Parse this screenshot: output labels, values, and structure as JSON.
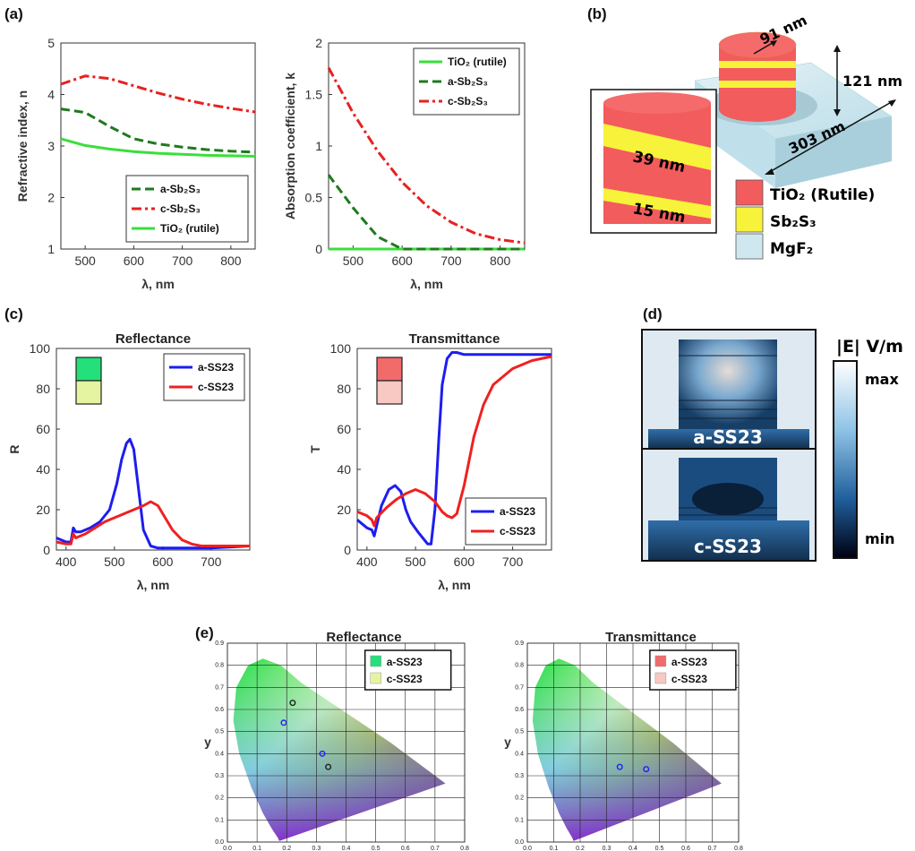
{
  "panels": {
    "a": "(a)",
    "b": "(b)",
    "c": "(c)",
    "d": "(d)",
    "e": "(e)"
  },
  "panel_b": {
    "dims": {
      "width": "91 nm",
      "height": "121 nm",
      "period": "303 nm",
      "layer1": "39 nm",
      "layer2": "15 nm"
    },
    "legend": [
      {
        "label": "TiO₂ (Rutile)",
        "color": "#f25c5c"
      },
      {
        "label": "Sb₂S₃",
        "color": "#f7f23a"
      },
      {
        "label": "MgF₂",
        "color": "#cfe8f0"
      }
    ]
  },
  "panel_d": {
    "labels": [
      "a-SS23",
      "c-SS23"
    ],
    "colorbar_title": "|E| V/m",
    "colorbar_max": "max",
    "colorbar_min": "min"
  },
  "chart_data": [
    {
      "id": "a-n",
      "type": "line",
      "xlabel": "λ, nm",
      "ylabel": "Refractive index, n",
      "xlim": [
        450,
        850
      ],
      "ylim": [
        1,
        5
      ],
      "xticks": [
        500,
        600,
        700,
        800
      ],
      "yticks": [
        1,
        2,
        3,
        4,
        5
      ],
      "legend_position": "bottom-right",
      "x": [
        450,
        500,
        550,
        600,
        650,
        700,
        750,
        800,
        850
      ],
      "series": [
        {
          "name": "a-Sb₂S₃",
          "color": "#1e7a1e",
          "dash": "10,5",
          "values": [
            3.72,
            3.65,
            3.38,
            3.14,
            3.04,
            2.98,
            2.93,
            2.9,
            2.88
          ]
        },
        {
          "name": "c-Sb₂S₃",
          "color": "#e82020",
          "dash": "11,4,3,4",
          "values": [
            4.2,
            4.36,
            4.31,
            4.17,
            4.03,
            3.91,
            3.81,
            3.73,
            3.66
          ]
        },
        {
          "name": "TiO₂ (rutile)",
          "color": "#3adf3a",
          "dash": "",
          "values": [
            3.14,
            3.01,
            2.94,
            2.89,
            2.86,
            2.84,
            2.82,
            2.81,
            2.8
          ]
        }
      ]
    },
    {
      "id": "a-k",
      "type": "line",
      "xlabel": "λ, nm",
      "ylabel": "Absorption coefficient, k",
      "xlim": [
        450,
        850
      ],
      "ylim": [
        0,
        2
      ],
      "xticks": [
        500,
        600,
        700,
        800
      ],
      "yticks": [
        0,
        0.5,
        1,
        1.5,
        2
      ],
      "legend_position": "top-right",
      "x": [
        450,
        500,
        550,
        600,
        650,
        700,
        750,
        800,
        850
      ],
      "series": [
        {
          "name": "TiO₂ (rutile)",
          "color": "#3adf3a",
          "dash": "",
          "values": [
            0,
            0,
            0,
            0,
            0,
            0,
            0,
            0,
            0
          ]
        },
        {
          "name": "a-Sb₂S₃",
          "color": "#1e7a1e",
          "dash": "10,5",
          "values": [
            0.72,
            0.4,
            0.12,
            0.0,
            0.0,
            0.0,
            0.0,
            0.0,
            0.0
          ]
        },
        {
          "name": "c-Sb₂S₃",
          "color": "#e82020",
          "dash": "11,4,3,4",
          "values": [
            1.76,
            1.32,
            0.95,
            0.65,
            0.42,
            0.26,
            0.15,
            0.09,
            0.06
          ]
        }
      ]
    },
    {
      "id": "c-R",
      "type": "line",
      "title": "Reflectance",
      "xlabel": "λ, nm",
      "ylabel": "R",
      "xlim": [
        380,
        780
      ],
      "ylim": [
        0,
        100
      ],
      "xticks": [
        400,
        500,
        600,
        700
      ],
      "yticks": [
        0,
        20,
        40,
        60,
        80,
        100
      ],
      "legend_position": "top-right",
      "swatches": [
        "#23e07a",
        "#e4f4a0"
      ],
      "series": [
        {
          "name": "a-SS23",
          "color": "#1d1df0",
          "x": [
            380,
            400,
            410,
            415,
            420,
            430,
            450,
            470,
            490,
            505,
            515,
            525,
            532,
            540,
            550,
            560,
            575,
            590,
            610,
            650,
            700,
            780
          ],
          "values": [
            6,
            4,
            4,
            11,
            9,
            9,
            11,
            14,
            20,
            33,
            45,
            53,
            55,
            50,
            30,
            10,
            2,
            1,
            1,
            1,
            1,
            2
          ]
        },
        {
          "name": "c-SS23",
          "color": "#f02020",
          "x": [
            380,
            400,
            410,
            415,
            420,
            440,
            460,
            480,
            500,
            520,
            540,
            560,
            575,
            590,
            605,
            620,
            640,
            660,
            680,
            700,
            780
          ],
          "values": [
            4,
            3,
            3,
            8,
            6,
            8,
            11,
            14,
            16,
            18,
            20,
            22,
            24,
            22,
            16,
            10,
            5,
            3,
            2,
            2,
            2
          ]
        }
      ]
    },
    {
      "id": "c-T",
      "type": "line",
      "title": "Transmittance",
      "xlabel": "λ, nm",
      "ylabel": "T",
      "xlim": [
        380,
        780
      ],
      "ylim": [
        0,
        100
      ],
      "xticks": [
        400,
        500,
        600,
        700
      ],
      "yticks": [
        0,
        20,
        40,
        60,
        80,
        100
      ],
      "legend_position": "bottom-right",
      "swatches": [
        "#f26b6b",
        "#f8c8c2"
      ],
      "series": [
        {
          "name": "a-SS23",
          "color": "#1d1df0",
          "x": [
            380,
            400,
            410,
            415,
            420,
            430,
            445,
            458,
            470,
            480,
            490,
            505,
            515,
            525,
            532,
            540,
            548,
            555,
            565,
            575,
            585,
            600,
            650,
            700,
            780
          ],
          "values": [
            15,
            11,
            10,
            7,
            12,
            22,
            30,
            32,
            29,
            20,
            14,
            9,
            6,
            3,
            3,
            20,
            55,
            82,
            95,
            98,
            98,
            97,
            97,
            97,
            97
          ]
        },
        {
          "name": "c-SS23",
          "color": "#f02020",
          "x": [
            380,
            400,
            410,
            415,
            420,
            440,
            460,
            480,
            500,
            520,
            540,
            555,
            565,
            575,
            585,
            600,
            620,
            640,
            660,
            700,
            740,
            780
          ],
          "values": [
            19,
            17,
            15,
            12,
            16,
            21,
            25,
            28,
            30,
            28,
            24,
            19,
            17,
            16,
            18,
            32,
            56,
            72,
            82,
            90,
            94,
            96
          ]
        }
      ]
    },
    {
      "id": "e-R",
      "type": "scatter",
      "title": "Reflectance",
      "xlabel": "x",
      "ylabel": "y",
      "xlim": [
        0,
        0.8
      ],
      "ylim": [
        0,
        0.9
      ],
      "xticks": [
        0,
        0.1,
        0.2,
        0.3,
        0.4,
        0.5,
        0.6,
        0.7,
        0.8
      ],
      "yticks": [
        0,
        0.1,
        0.2,
        0.3,
        0.4,
        0.5,
        0.6,
        0.7,
        0.8,
        0.9
      ],
      "tick_labels_x": [
        "0.0",
        "0.1",
        "0.2",
        "0.3",
        "0.4",
        "0.5",
        "0.6",
        "0.7",
        "0.8"
      ],
      "tick_labels_y": [
        "0.0",
        "0.1",
        "0.2",
        "0.3",
        "0.4",
        "0.5",
        "0.6",
        "0.7",
        "0.8",
        "0.9"
      ],
      "legend": [
        {
          "name": "a-SS23",
          "swatch": "#23e07a"
        },
        {
          "name": "c-SS23",
          "swatch": "#e4f4a0"
        }
      ],
      "series": [
        {
          "name": "blue markers",
          "color": "#2222ee",
          "points": [
            [
              0.19,
              0.54
            ],
            [
              0.32,
              0.4
            ]
          ]
        },
        {
          "name": "black markers",
          "color": "#222222",
          "points": [
            [
              0.22,
              0.63
            ],
            [
              0.34,
              0.34
            ]
          ]
        }
      ]
    },
    {
      "id": "e-T",
      "type": "scatter",
      "title": "Transmittance",
      "xlabel": "x",
      "ylabel": "y",
      "xlim": [
        0,
        0.8
      ],
      "ylim": [
        0,
        0.9
      ],
      "xticks": [
        0,
        0.1,
        0.2,
        0.3,
        0.4,
        0.5,
        0.6,
        0.7,
        0.8
      ],
      "yticks": [
        0,
        0.1,
        0.2,
        0.3,
        0.4,
        0.5,
        0.6,
        0.7,
        0.8,
        0.9
      ],
      "tick_labels_x": [
        "0.0",
        "0.1",
        "0.2",
        "0.3",
        "0.4",
        "0.5",
        "0.6",
        "0.7",
        "0.8"
      ],
      "tick_labels_y": [
        "0.0",
        "0.1",
        "0.2",
        "0.3",
        "0.4",
        "0.5",
        "0.6",
        "0.7",
        "0.8",
        "0.9"
      ],
      "legend": [
        {
          "name": "a-SS23",
          "swatch": "#f26b6b"
        },
        {
          "name": "c-SS23",
          "swatch": "#f8c8c2"
        }
      ],
      "series": [
        {
          "name": "blue markers",
          "color": "#2222ee",
          "points": [
            [
              0.35,
              0.34
            ],
            [
              0.45,
              0.33
            ]
          ]
        }
      ]
    }
  ]
}
